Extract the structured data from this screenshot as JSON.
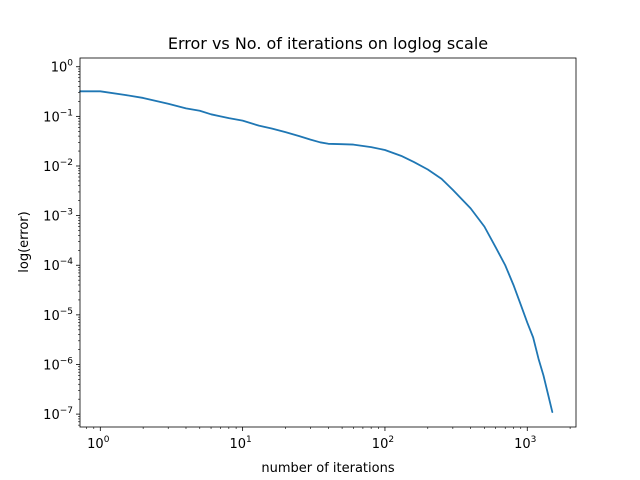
{
  "chart_data": {
    "type": "line",
    "title": "Error vs No. of iterations on loglog scale",
    "xlabel": "number of iterations",
    "ylabel": "log(error)",
    "xscale": "log",
    "yscale": "log",
    "grid": false,
    "legend": "none",
    "xlim": [
      0.72,
      2200
    ],
    "ylim": [
      5.5e-08,
      1.5
    ],
    "x_ticks": [
      {
        "value": 1,
        "base": "10",
        "exp": "0"
      },
      {
        "value": 10,
        "base": "10",
        "exp": "1"
      },
      {
        "value": 100,
        "base": "10",
        "exp": "2"
      },
      {
        "value": 1000,
        "base": "10",
        "exp": "3"
      }
    ],
    "y_ticks": [
      {
        "value": 1,
        "base": "10",
        "exp": "0"
      },
      {
        "value": 0.1,
        "base": "10",
        "exp": "−1"
      },
      {
        "value": 0.01,
        "base": "10",
        "exp": "−2"
      },
      {
        "value": 0.001,
        "base": "10",
        "exp": "−3"
      },
      {
        "value": 0.0001,
        "base": "10",
        "exp": "−4"
      },
      {
        "value": 1e-05,
        "base": "10",
        "exp": "−5"
      },
      {
        "value": 1e-06,
        "base": "10",
        "exp": "−6"
      },
      {
        "value": 1e-07,
        "base": "10",
        "exp": "−7"
      }
    ],
    "series": [
      {
        "color": "#1f77b4",
        "points": [
          [
            0.72,
            0.32
          ],
          [
            1.0,
            0.32
          ],
          [
            1.5,
            0.27
          ],
          [
            2,
            0.235
          ],
          [
            3,
            0.18
          ],
          [
            4,
            0.145
          ],
          [
            5,
            0.13
          ],
          [
            6,
            0.11
          ],
          [
            7,
            0.1
          ],
          [
            8,
            0.092
          ],
          [
            10,
            0.082
          ],
          [
            13,
            0.065
          ],
          [
            16,
            0.057
          ],
          [
            20,
            0.048
          ],
          [
            25,
            0.04
          ],
          [
            30,
            0.034
          ],
          [
            35,
            0.03
          ],
          [
            40,
            0.028
          ],
          [
            50,
            0.0275
          ],
          [
            60,
            0.027
          ],
          [
            80,
            0.024
          ],
          [
            100,
            0.021
          ],
          [
            130,
            0.016
          ],
          [
            160,
            0.012
          ],
          [
            200,
            0.0085
          ],
          [
            250,
            0.0055
          ],
          [
            300,
            0.0033
          ],
          [
            400,
            0.0014
          ],
          [
            500,
            0.0006
          ],
          [
            600,
            0.00023
          ],
          [
            700,
            0.0001
          ],
          [
            800,
            4e-05
          ],
          [
            900,
            1.6e-05
          ],
          [
            1000,
            7e-06
          ],
          [
            1100,
            3.5e-06
          ],
          [
            1200,
            1.3e-06
          ],
          [
            1300,
            6e-07
          ],
          [
            1400,
            2.5e-07
          ],
          [
            1500,
            1.1e-07
          ]
        ]
      }
    ]
  }
}
